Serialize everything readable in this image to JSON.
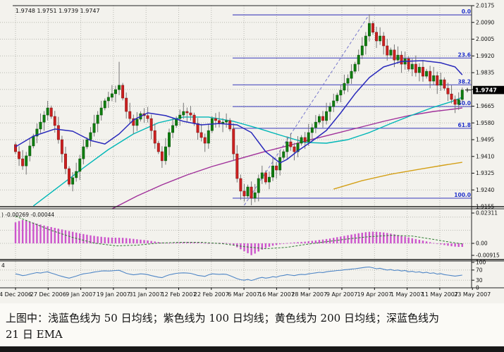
{
  "readouts": {
    "price_ohlc": "1.9748 1.9751 1.9739 1.9747",
    "macd": ") -0.00269 -0.00044",
    "rsi": "4"
  },
  "price_axis": {
    "labels": [
      "2.0175",
      "2.0090",
      "2.0005",
      "1.9920",
      "1.9835",
      "1.9750",
      "1.9665",
      "1.9580",
      "1.9495",
      "1.9410",
      "1.9325",
      "1.9240",
      "1.9155"
    ],
    "current": "1.9747"
  },
  "macd_axis": {
    "labels": [
      "0.02311",
      "0.00",
      "-0.00915"
    ]
  },
  "rsi_axis": {
    "labels": [
      "100",
      "70",
      "30",
      "0"
    ]
  },
  "dates": [
    "4 Dec 2006",
    "27 Dec 2006",
    "9 Jan 2007",
    "19 Jan 2007",
    "31 Jan 2007",
    "12 Feb 2007",
    "22 Feb 2007",
    "6 Mar 2007",
    "16 Mar 2007",
    "28 Mar 2007",
    "9 Apr 2007",
    "19 Apr 2007",
    "1 May 2007",
    "11 May 2007",
    "23 May 2007"
  ],
  "caption": {
    "line1": "上图中：浅蓝色线为 50 日均线；紫色线为 100 日均线；黄色线为 200 日均线；深蓝色线为",
    "line2": "21 日 EMA"
  },
  "colors": {
    "paper": "#f3f2ed",
    "grid": "#b9b9b2",
    "border": "#222222",
    "candle_up": "#0f7d0f",
    "candle_up_stroke": "#064d06",
    "candle_down": "#cc2020",
    "candle_down_stroke": "#7a1010",
    "wick": "#777777",
    "ema21": "#2929bb",
    "ma50": "#00b7b7",
    "ma100": "#a0309a",
    "ma200": "#d4a017",
    "fib_line": "#6b6bc8",
    "fib_label": "#2233cc",
    "trendline": "#7777cc",
    "macd_bar": "#cc55cc",
    "macd_signal": "#2e7d32",
    "rsi_line": "#4f86c6",
    "price_tag_bg": "#000000",
    "price_tag_text": "#ffffff",
    "axis_text": "#111111"
  },
  "chart_data": {
    "type": "candlestick",
    "title": "",
    "x_dates": [
      "4 Dec 2006",
      "27 Dec 2006",
      "9 Jan 2007",
      "19 Jan 2007",
      "31 Jan 2007",
      "12 Feb 2007",
      "22 Feb 2007",
      "6 Mar 2007",
      "16 Mar 2007",
      "28 Mar 2007",
      "9 Apr 2007",
      "19 Apr 2007",
      "1 May 2007",
      "11 May 2007",
      "23 May 2007"
    ],
    "price_range": {
      "top": 2.0175,
      "bottom": 1.9155,
      "tick": 0.0085
    },
    "last_ohlc": {
      "open": 1.9748,
      "high": 1.9751,
      "low": 1.9739,
      "close": 1.9747
    },
    "open_first": 1.947,
    "closes": [
      1.9434,
      1.9398,
      1.9362,
      1.9413,
      1.9463,
      1.9513,
      1.9549,
      1.9584,
      1.962,
      1.9656,
      1.9613,
      1.9567,
      1.9495,
      1.9423,
      1.9348,
      1.9269,
      1.9302,
      1.9334,
      1.9398,
      1.9459,
      1.9495,
      1.9531,
      1.9577,
      1.962,
      1.9656,
      1.9692,
      1.971,
      1.9728,
      1.9749,
      1.9771,
      1.9706,
      1.9638,
      1.9602,
      1.9567,
      1.9599,
      1.9627,
      1.9617,
      1.9602,
      1.9541,
      1.9477,
      1.9434,
      1.9388,
      1.9459,
      1.9531,
      1.9567,
      1.9602,
      1.962,
      1.9638,
      1.9631,
      1.962,
      1.9577,
      1.9531,
      1.9506,
      1.9477,
      1.9541,
      1.9602,
      1.9592,
      1.9577,
      1.9584,
      1.9592,
      1.9549,
      1.9423,
      1.9298,
      1.9234,
      1.9209,
      1.9255,
      1.9198,
      1.9226,
      1.9298,
      1.9327,
      1.928,
      1.9305,
      1.9362,
      1.9341,
      1.9405,
      1.9434,
      1.9484,
      1.9459,
      1.9434,
      1.9477,
      1.9506,
      1.9484,
      1.9531,
      1.9556,
      1.9584,
      1.9613,
      1.9592,
      1.9638,
      1.9663,
      1.9692,
      1.9721,
      1.9746,
      1.9781,
      1.9806,
      1.9842,
      1.9878,
      1.9924,
      1.9971,
      2.0021,
      2.0085,
      2.004,
      1.9996,
      2.0021,
      1.9971,
      1.9924,
      1.995,
      1.9899,
      1.9924,
      1.9878,
      1.9906,
      1.9853,
      1.9878,
      1.9835,
      1.9863,
      1.9817,
      1.9842,
      1.9792,
      1.982,
      1.9771,
      1.9799,
      1.9756,
      1.9727,
      1.9699,
      1.9674,
      1.9699,
      1.9747
    ],
    "wick_overrides": {
      "29": {
        "high": 1.989
      },
      "66": {
        "low": 1.9162
      },
      "99": {
        "high": 2.0131
      }
    },
    "fibonacci": {
      "levels": [
        {
          "label": "0.0",
          "price": 2.0128
        },
        {
          "label": "23.6",
          "price": 1.9909
        },
        {
          "label": "38.2",
          "price": 1.9773
        },
        {
          "label": "50.0",
          "price": 1.9663
        },
        {
          "label": "61.8",
          "price": 1.9553
        },
        {
          "label": "100.0",
          "price": 1.9198
        }
      ],
      "trendline": {
        "from": [
          64,
          1.9162
        ],
        "to": [
          99,
          2.0131
        ]
      }
    },
    "moving_averages": {
      "ema21": [
        [
          0,
          1.9459
        ],
        [
          5,
          1.9513
        ],
        [
          11,
          1.9549
        ],
        [
          16,
          1.9538
        ],
        [
          21,
          1.9491
        ],
        [
          25,
          1.9473
        ],
        [
          29,
          1.9524
        ],
        [
          33,
          1.9595
        ],
        [
          37,
          1.9631
        ],
        [
          42,
          1.9617
        ],
        [
          47,
          1.9588
        ],
        [
          52,
          1.957
        ],
        [
          57,
          1.9577
        ],
        [
          62,
          1.957
        ],
        [
          66,
          1.9531
        ],
        [
          70,
          1.9434
        ],
        [
          74,
          1.9377
        ],
        [
          76,
          1.9395
        ],
        [
          79,
          1.9438
        ],
        [
          83,
          1.9488
        ],
        [
          87,
          1.9542
        ],
        [
          91,
          1.9631
        ],
        [
          95,
          1.9728
        ],
        [
          99,
          1.981
        ],
        [
          103,
          1.9864
        ],
        [
          108,
          1.9892
        ],
        [
          114,
          1.9896
        ],
        [
          119,
          1.9885
        ],
        [
          123,
          1.9864
        ],
        [
          125,
          1.9824
        ]
      ],
      "ma50": [
        [
          5,
          1.9159
        ],
        [
          12,
          1.9255
        ],
        [
          19,
          1.9352
        ],
        [
          26,
          1.9445
        ],
        [
          33,
          1.9524
        ],
        [
          40,
          1.9581
        ],
        [
          47,
          1.961
        ],
        [
          54,
          1.961
        ],
        [
          61,
          1.9588
        ],
        [
          68,
          1.9552
        ],
        [
          75,
          1.9513
        ],
        [
          81,
          1.9481
        ],
        [
          87,
          1.9477
        ],
        [
          93,
          1.9495
        ],
        [
          99,
          1.9531
        ],
        [
          105,
          1.9577
        ],
        [
          111,
          1.962
        ],
        [
          117,
          1.966
        ],
        [
          122,
          1.9688
        ],
        [
          125,
          1.971
        ]
      ],
      "ma100": [
        [
          27,
          1.9144
        ],
        [
          34,
          1.9209
        ],
        [
          41,
          1.9266
        ],
        [
          48,
          1.9316
        ],
        [
          55,
          1.9359
        ],
        [
          62,
          1.9395
        ],
        [
          69,
          1.9431
        ],
        [
          76,
          1.9463
        ],
        [
          82,
          1.9492
        ],
        [
          89,
          1.9524
        ],
        [
          96,
          1.9556
        ],
        [
          103,
          1.9588
        ],
        [
          110,
          1.9617
        ],
        [
          117,
          1.9638
        ],
        [
          122,
          1.9649
        ],
        [
          125,
          1.9656
        ]
      ],
      "ma200": [
        [
          89,
          1.9244
        ],
        [
          97,
          1.9287
        ],
        [
          105,
          1.932
        ],
        [
          113,
          1.9345
        ],
        [
          120,
          1.9366
        ],
        [
          125,
          1.938
        ]
      ]
    },
    "macd": {
      "range": {
        "top": 0.02311,
        "bottom": -0.00915
      },
      "histogram": [
        0.016,
        0.017,
        0.0178,
        0.0172,
        0.0165,
        0.0158,
        0.015,
        0.0143,
        0.0136,
        0.013,
        0.0124,
        0.0118,
        0.0112,
        0.0106,
        0.01,
        0.0094,
        0.0088,
        0.0082,
        0.0076,
        0.0071,
        0.0066,
        0.0061,
        0.0057,
        0.0053,
        0.005,
        0.0047,
        0.0045,
        0.0044,
        0.0043,
        0.0043,
        0.0042,
        0.004,
        0.0037,
        0.0034,
        0.0031,
        0.0028,
        0.0025,
        0.0022,
        0.0018,
        0.0014,
        0.001,
        0.0006,
        0.0004,
        0.0003,
        0.0004,
        0.0006,
        0.0008,
        0.001,
        0.0011,
        0.0011,
        0.001,
        0.0008,
        0.0005,
        0.0002,
        0.0001,
        0.0002,
        0.0003,
        0.0004,
        0.0004,
        0.0003,
        -0.0005,
        -0.0015,
        -0.003,
        -0.0045,
        -0.006,
        -0.0075,
        -0.009,
        -0.0078,
        -0.0062,
        -0.0048,
        -0.0036,
        -0.0026,
        -0.0018,
        -0.0012,
        -0.0007,
        -0.0003,
        0.0002,
        0.0005,
        0.0007,
        0.0009,
        0.0011,
        0.0013,
        0.0016,
        0.0019,
        0.0022,
        0.0026,
        0.0029,
        0.0033,
        0.0037,
        0.0042,
        0.0047,
        0.0052,
        0.0057,
        0.0062,
        0.0067,
        0.0072,
        0.0077,
        0.0081,
        0.0085,
        0.0088,
        0.0089,
        0.0088,
        0.0086,
        0.0083,
        0.0079,
        0.0074,
        0.0069,
        0.0063,
        0.0057,
        0.0051,
        0.0045,
        0.0039,
        0.0033,
        0.0027,
        0.0021,
        0.0015,
        0.0009,
        0.0003,
        -0.0003,
        -0.0008,
        -0.0013,
        -0.0018,
        -0.0022,
        -0.0025,
        -0.0027,
        -0.0027
      ],
      "signal_points": [
        [
          0,
          0.0207
        ],
        [
          4,
          0.0164
        ],
        [
          10,
          0.0099
        ],
        [
          16,
          0.0045
        ],
        [
          22,
          0.0002
        ],
        [
          28,
          -0.0019
        ],
        [
          34,
          -0.0014
        ],
        [
          40,
          0.0002
        ],
        [
          46,
          0.0008
        ],
        [
          52,
          0.0008
        ],
        [
          58,
          -0.0003
        ],
        [
          64,
          -0.0025
        ],
        [
          70,
          -0.0041
        ],
        [
          76,
          -0.003
        ],
        [
          81,
          -0.0009
        ],
        [
          87,
          0.0013
        ],
        [
          93,
          0.0034
        ],
        [
          99,
          0.0051
        ],
        [
          105,
          0.0061
        ],
        [
          111,
          0.0056
        ],
        [
          117,
          0.003
        ],
        [
          121,
          0.0012
        ],
        [
          125,
          -0.0004
        ]
      ],
      "guides": [
        0.02,
        0.01,
        0.0
      ]
    },
    "rsi": {
      "range": [
        0,
        100
      ],
      "guides": [
        70,
        30
      ],
      "values": [
        55,
        52,
        48,
        50,
        54,
        57,
        60,
        58,
        61,
        63,
        58,
        54,
        49,
        45,
        41,
        38,
        42,
        46,
        51,
        55,
        57,
        59,
        62,
        64,
        66,
        67,
        66,
        67,
        68,
        69,
        63,
        57,
        54,
        51,
        53,
        55,
        54,
        52,
        48,
        45,
        42,
        40,
        46,
        51,
        54,
        57,
        58,
        59,
        58,
        57,
        53,
        49,
        47,
        45,
        51,
        55,
        54,
        53,
        54,
        53,
        48,
        42,
        36,
        32,
        30,
        33,
        29,
        33,
        38,
        41,
        38,
        40,
        44,
        42,
        47,
        49,
        52,
        50,
        48,
        51,
        53,
        52,
        55,
        57,
        59,
        61,
        60,
        63,
        65,
        66,
        68,
        69,
        71,
        72,
        74,
        75,
        77,
        79,
        81,
        82,
        79,
        75,
        77,
        73,
        70,
        72,
        68,
        70,
        66,
        68,
        63,
        65,
        61,
        63,
        59,
        61,
        57,
        59,
        54,
        56,
        52,
        50,
        48,
        46,
        48,
        50
      ]
    }
  }
}
